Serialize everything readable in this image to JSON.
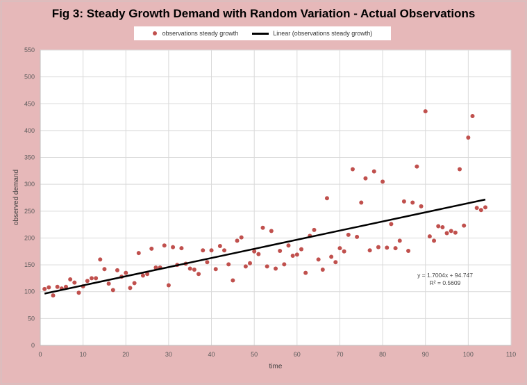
{
  "title": "Fig 3: Steady Growth Demand with Random Variation - Actual Observations",
  "colors": {
    "background": "#e6b8b9",
    "plot_area": "#ffffff",
    "points": "#c0504d",
    "trendline": "#000000",
    "grid": "#d9d9d9"
  },
  "legend": {
    "series_label": "observations steady growth",
    "trend_label": "Linear (observations steady growth)"
  },
  "annotation": {
    "equation": "y = 1.7004x + 94.747",
    "r2": "R² = 0.5609"
  },
  "chart_data": {
    "type": "scatter",
    "title": "Fig 3: Steady Growth Demand with Random Variation - Actual Observations",
    "xlabel": "time",
    "ylabel": "observed demand",
    "xlim": [
      0,
      110
    ],
    "ylim": [
      0,
      550
    ],
    "xticks": [
      "0",
      "10",
      "20",
      "30",
      "40",
      "50",
      "60",
      "70",
      "80",
      "90",
      "100",
      "110"
    ],
    "yticks": [
      "0",
      "50",
      "100",
      "150",
      "200",
      "250",
      "300",
      "350",
      "400",
      "450",
      "500",
      "550"
    ],
    "grid": true,
    "legend_position": "top",
    "series": [
      {
        "name": "observations steady growth",
        "points": [
          [
            1,
            105
          ],
          [
            2,
            108
          ],
          [
            3,
            93
          ],
          [
            4,
            109
          ],
          [
            5,
            106
          ],
          [
            6,
            109
          ],
          [
            7,
            123
          ],
          [
            8,
            117
          ],
          [
            9,
            98
          ],
          [
            10,
            110
          ],
          [
            11,
            120
          ],
          [
            12,
            125
          ],
          [
            13,
            125
          ],
          [
            14,
            160
          ],
          [
            15,
            142
          ],
          [
            16,
            115
          ],
          [
            17,
            103
          ],
          [
            18,
            140
          ],
          [
            19,
            128
          ],
          [
            20,
            135
          ],
          [
            21,
            107
          ],
          [
            22,
            116
          ],
          [
            23,
            172
          ],
          [
            24,
            130
          ],
          [
            25,
            133
          ],
          [
            26,
            180
          ],
          [
            27,
            145
          ],
          [
            28,
            145
          ],
          [
            29,
            186
          ],
          [
            30,
            112
          ],
          [
            31,
            183
          ],
          [
            32,
            150
          ],
          [
            33,
            181
          ],
          [
            34,
            152
          ],
          [
            35,
            143
          ],
          [
            36,
            141
          ],
          [
            37,
            133
          ],
          [
            38,
            177
          ],
          [
            39,
            155
          ],
          [
            40,
            177
          ],
          [
            41,
            142
          ],
          [
            42,
            185
          ],
          [
            43,
            177
          ],
          [
            44,
            151
          ],
          [
            45,
            121
          ],
          [
            46,
            195
          ],
          [
            47,
            201
          ],
          [
            48,
            147
          ],
          [
            49,
            153
          ],
          [
            50,
            175
          ],
          [
            51,
            170
          ],
          [
            52,
            219
          ],
          [
            53,
            147
          ],
          [
            54,
            213
          ],
          [
            55,
            143
          ],
          [
            56,
            176
          ],
          [
            57,
            151
          ],
          [
            58,
            186
          ],
          [
            59,
            167
          ],
          [
            60,
            169
          ],
          [
            61,
            179
          ],
          [
            62,
            135
          ],
          [
            63,
            204
          ],
          [
            64,
            215
          ],
          [
            65,
            160
          ],
          [
            66,
            141
          ],
          [
            67,
            274
          ],
          [
            68,
            165
          ],
          [
            69,
            155
          ],
          [
            70,
            181
          ],
          [
            71,
            175
          ],
          [
            72,
            206
          ],
          [
            73,
            328
          ],
          [
            74,
            202
          ],
          [
            75,
            266
          ],
          [
            76,
            311
          ],
          [
            77,
            177
          ],
          [
            78,
            324
          ],
          [
            79,
            183
          ],
          [
            80,
            305
          ],
          [
            81,
            182
          ],
          [
            82,
            226
          ],
          [
            83,
            181
          ],
          [
            84,
            195
          ],
          [
            85,
            268
          ],
          [
            86,
            176
          ],
          [
            87,
            266
          ],
          [
            88,
            333
          ],
          [
            89,
            259
          ],
          [
            90,
            436
          ],
          [
            91,
            203
          ],
          [
            92,
            195
          ],
          [
            93,
            222
          ],
          [
            94,
            220
          ],
          [
            95,
            209
          ],
          [
            96,
            213
          ],
          [
            97,
            210
          ],
          [
            98,
            328
          ],
          [
            99,
            223
          ],
          [
            100,
            387
          ],
          [
            101,
            427
          ],
          [
            102,
            256
          ],
          [
            103,
            252
          ],
          [
            104,
            257
          ]
        ]
      }
    ],
    "trendline": {
      "name": "Linear (observations steady growth)",
      "slope": 1.7004,
      "intercept": 94.747,
      "x_range": [
        1,
        104
      ]
    }
  }
}
